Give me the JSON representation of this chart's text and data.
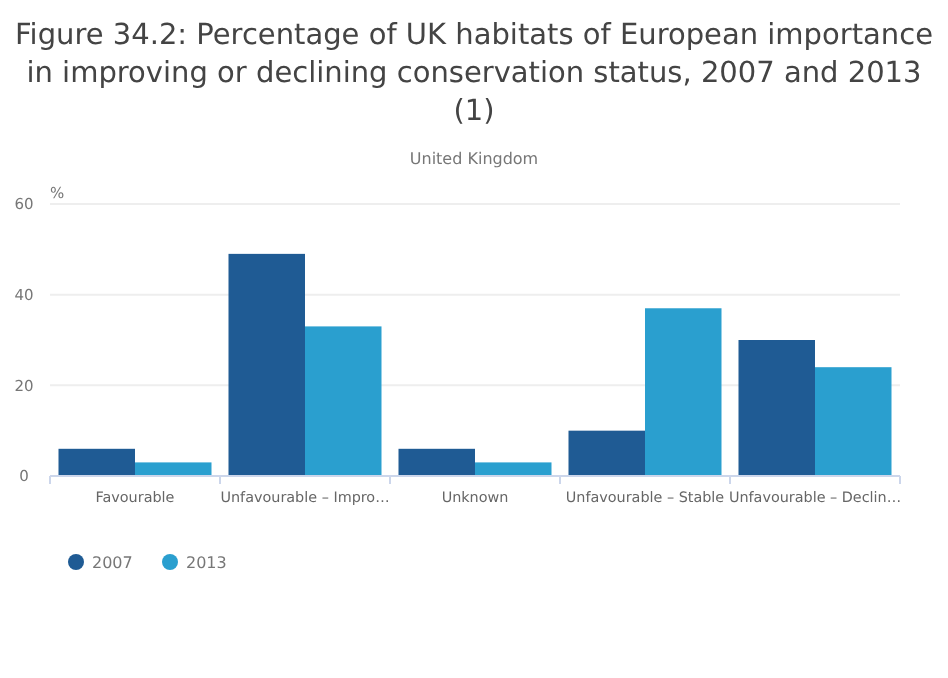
{
  "chart_data": {
    "type": "bar",
    "title": "Figure 34.2: Percentage of UK habitats of European importance in improving or declining conservation status, 2007 and 2013 (1)",
    "subtitle": "United Kingdom",
    "ylabel": "%",
    "categories": [
      "Favourable",
      "Unfavourable – Impro…",
      "Unknown",
      "Unfavourable – Stable",
      "Unfavourable – Declin…"
    ],
    "series": [
      {
        "name": "2007",
        "color": "#1f5b94",
        "values": [
          6,
          49,
          6,
          10,
          30
        ]
      },
      {
        "name": "2013",
        "color": "#2a9fcf",
        "values": [
          3,
          33,
          3,
          37,
          24
        ]
      }
    ],
    "ylim": [
      0,
      60
    ],
    "yticks": [
      0,
      20,
      40,
      60
    ],
    "grid": "y",
    "legend": "bottom left"
  }
}
